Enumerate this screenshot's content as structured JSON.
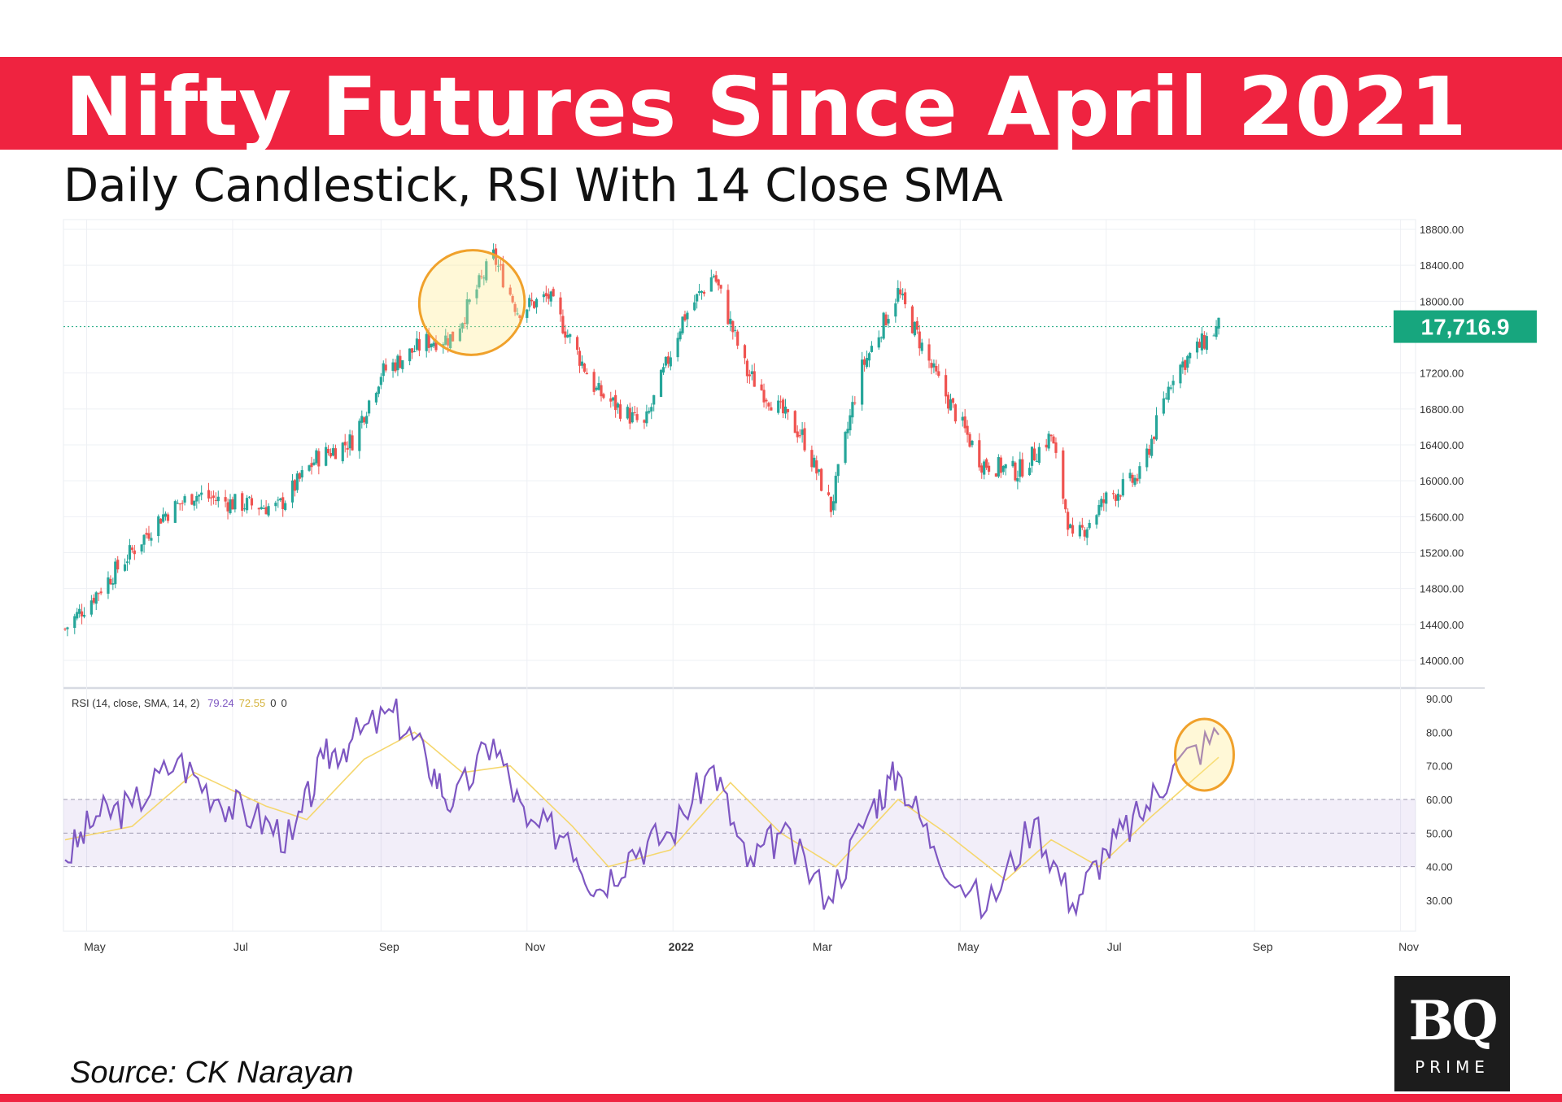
{
  "header": {
    "title": "Nifty Futures Since April 2021",
    "subtitle": "Daily Candlestick, RSI With 14 Close SMA"
  },
  "source_text": "Source: CK Narayan",
  "logo": {
    "text": "BQ",
    "subtext": "PRIME"
  },
  "colors": {
    "banner": "#ef2340",
    "up": "#26a69a",
    "down": "#ef5350",
    "rsi": "#7e57c2",
    "rsi_sma": "#f5d76e",
    "highlight": "#f0a12b",
    "last_price": "#17a67e"
  },
  "chart_data": [
    {
      "type": "candlestick",
      "title": "",
      "ylim": [
        13800,
        18900
      ],
      "y_ticks": [
        "18800.00",
        "18400.00",
        "18000.00",
        "17200.00",
        "16800.00",
        "16400.00",
        "16000.00",
        "15600.00",
        "15200.00",
        "14800.00",
        "14400.00",
        "14000.00"
      ],
      "last_price": 17716.9,
      "last_price_label": "17,716.9",
      "path_points": [
        {
          "date": "2021-04-22",
          "close": 14350
        },
        {
          "date": "2021-05-10",
          "close": 14900
        },
        {
          "date": "2021-06-01",
          "close": 15600
        },
        {
          "date": "2021-06-15",
          "close": 15850
        },
        {
          "date": "2021-07-01",
          "close": 15750
        },
        {
          "date": "2021-07-20",
          "close": 15700
        },
        {
          "date": "2021-08-05",
          "close": 16250
        },
        {
          "date": "2021-08-20",
          "close": 16450
        },
        {
          "date": "2021-09-01",
          "close": 17200
        },
        {
          "date": "2021-09-20",
          "close": 17550
        },
        {
          "date": "2021-10-01",
          "close": 17600
        },
        {
          "date": "2021-10-18",
          "close": 18500
        },
        {
          "date": "2021-10-28",
          "close": 17900
        },
        {
          "date": "2021-11-10",
          "close": 18050
        },
        {
          "date": "2021-11-30",
          "close": 17000
        },
        {
          "date": "2021-12-20",
          "close": 16600
        },
        {
          "date": "2022-01-05",
          "close": 17800
        },
        {
          "date": "2022-01-18",
          "close": 18300
        },
        {
          "date": "2022-02-01",
          "close": 17200
        },
        {
          "date": "2022-02-24",
          "close": 16500
        },
        {
          "date": "2022-03-08",
          "close": 15700
        },
        {
          "date": "2022-03-20",
          "close": 17200
        },
        {
          "date": "2022-04-05",
          "close": 18100
        },
        {
          "date": "2022-04-20",
          "close": 17200
        },
        {
          "date": "2022-05-10",
          "close": 16200
        },
        {
          "date": "2022-05-25",
          "close": 16100
        },
        {
          "date": "2022-06-08",
          "close": 16500
        },
        {
          "date": "2022-06-17",
          "close": 15300
        },
        {
          "date": "2022-07-01",
          "close": 15800
        },
        {
          "date": "2022-07-15",
          "close": 16050
        },
        {
          "date": "2022-07-29",
          "close": 17200
        },
        {
          "date": "2022-08-17",
          "close": 17716.9
        }
      ],
      "highlight": {
        "from": "2021-09-23",
        "to": "2021-10-25"
      }
    },
    {
      "type": "line",
      "title": "",
      "legend_label": "RSI (14, close, SMA, 14, 2)",
      "legend_values": [
        "79.24",
        "72.55",
        "0",
        "0"
      ],
      "ylim": [
        23,
        92
      ],
      "y_ticks": [
        "90.00",
        "80.00",
        "70.00",
        "60.00",
        "50.00",
        "40.00",
        "30.00"
      ],
      "band": [
        40,
        60
      ],
      "series": [
        {
          "points": [
            {
              "date": "2021-04-22",
              "value": 42
            },
            {
              "date": "2021-05-05",
              "value": 55
            },
            {
              "date": "2021-05-20",
              "value": 58
            },
            {
              "date": "2021-06-08",
              "value": 72
            },
            {
              "date": "2021-06-25",
              "value": 60
            },
            {
              "date": "2021-07-10",
              "value": 55
            },
            {
              "date": "2021-07-26",
              "value": 48
            },
            {
              "date": "2021-08-08",
              "value": 72
            },
            {
              "date": "2021-08-20",
              "value": 78
            },
            {
              "date": "2021-09-06",
              "value": 86
            },
            {
              "date": "2021-09-20",
              "value": 72
            },
            {
              "date": "2021-10-01",
              "value": 58
            },
            {
              "date": "2021-10-18",
              "value": 78
            },
            {
              "date": "2021-11-01",
              "value": 52
            },
            {
              "date": "2021-11-18",
              "value": 50
            },
            {
              "date": "2021-11-30",
              "value": 33
            },
            {
              "date": "2021-12-15",
              "value": 45
            },
            {
              "date": "2021-12-31",
              "value": 50
            },
            {
              "date": "2022-01-18",
              "value": 70
            },
            {
              "date": "2022-02-01",
              "value": 40
            },
            {
              "date": "2022-02-15",
              "value": 50
            },
            {
              "date": "2022-03-07",
              "value": 31
            },
            {
              "date": "2022-03-25",
              "value": 58
            },
            {
              "date": "2022-04-05",
              "value": 68
            },
            {
              "date": "2022-04-20",
              "value": 46
            },
            {
              "date": "2022-05-12",
              "value": 27
            },
            {
              "date": "2022-06-01",
              "value": 54
            },
            {
              "date": "2022-06-17",
              "value": 29
            },
            {
              "date": "2022-07-01",
              "value": 45
            },
            {
              "date": "2022-07-15",
              "value": 55
            },
            {
              "date": "2022-07-29",
              "value": 70
            },
            {
              "date": "2022-08-17",
              "value": 79.24
            }
          ]
        },
        {
          "points": [
            {
              "date": "2021-04-22",
              "value": 48
            },
            {
              "date": "2021-05-20",
              "value": 52
            },
            {
              "date": "2021-06-15",
              "value": 68
            },
            {
              "date": "2021-07-15",
              "value": 58
            },
            {
              "date": "2021-08-01",
              "value": 54
            },
            {
              "date": "2021-08-25",
              "value": 72
            },
            {
              "date": "2021-09-15",
              "value": 80
            },
            {
              "date": "2021-10-05",
              "value": 68
            },
            {
              "date": "2021-10-25",
              "value": 70
            },
            {
              "date": "2021-11-20",
              "value": 52
            },
            {
              "date": "2021-12-05",
              "value": 40
            },
            {
              "date": "2021-12-31",
              "value": 45
            },
            {
              "date": "2022-01-25",
              "value": 65
            },
            {
              "date": "2022-02-15",
              "value": 50
            },
            {
              "date": "2022-03-10",
              "value": 40
            },
            {
              "date": "2022-04-05",
              "value": 60
            },
            {
              "date": "2022-04-25",
              "value": 50
            },
            {
              "date": "2022-05-20",
              "value": 36
            },
            {
              "date": "2022-06-08",
              "value": 48
            },
            {
              "date": "2022-06-28",
              "value": 40
            },
            {
              "date": "2022-07-20",
              "value": 55
            },
            {
              "date": "2022-08-17",
              "value": 72.55
            }
          ]
        }
      ],
      "highlight": {
        "from": "2022-07-29",
        "to": "2022-08-20"
      }
    }
  ],
  "x_axis": {
    "ticks": [
      {
        "label": "May",
        "date": "2021-05-01"
      },
      {
        "label": "Jul",
        "date": "2021-07-01"
      },
      {
        "label": "Sep",
        "date": "2021-09-01"
      },
      {
        "label": "Nov",
        "date": "2021-11-01"
      },
      {
        "label": "2022",
        "date": "2022-01-01"
      },
      {
        "label": "Mar",
        "date": "2022-03-01"
      },
      {
        "label": "May",
        "date": "2022-05-01"
      },
      {
        "label": "Jul",
        "date": "2022-07-01"
      },
      {
        "label": "Sep",
        "date": "2022-09-01"
      },
      {
        "label": "Nov",
        "date": "2022-11-01"
      }
    ]
  }
}
